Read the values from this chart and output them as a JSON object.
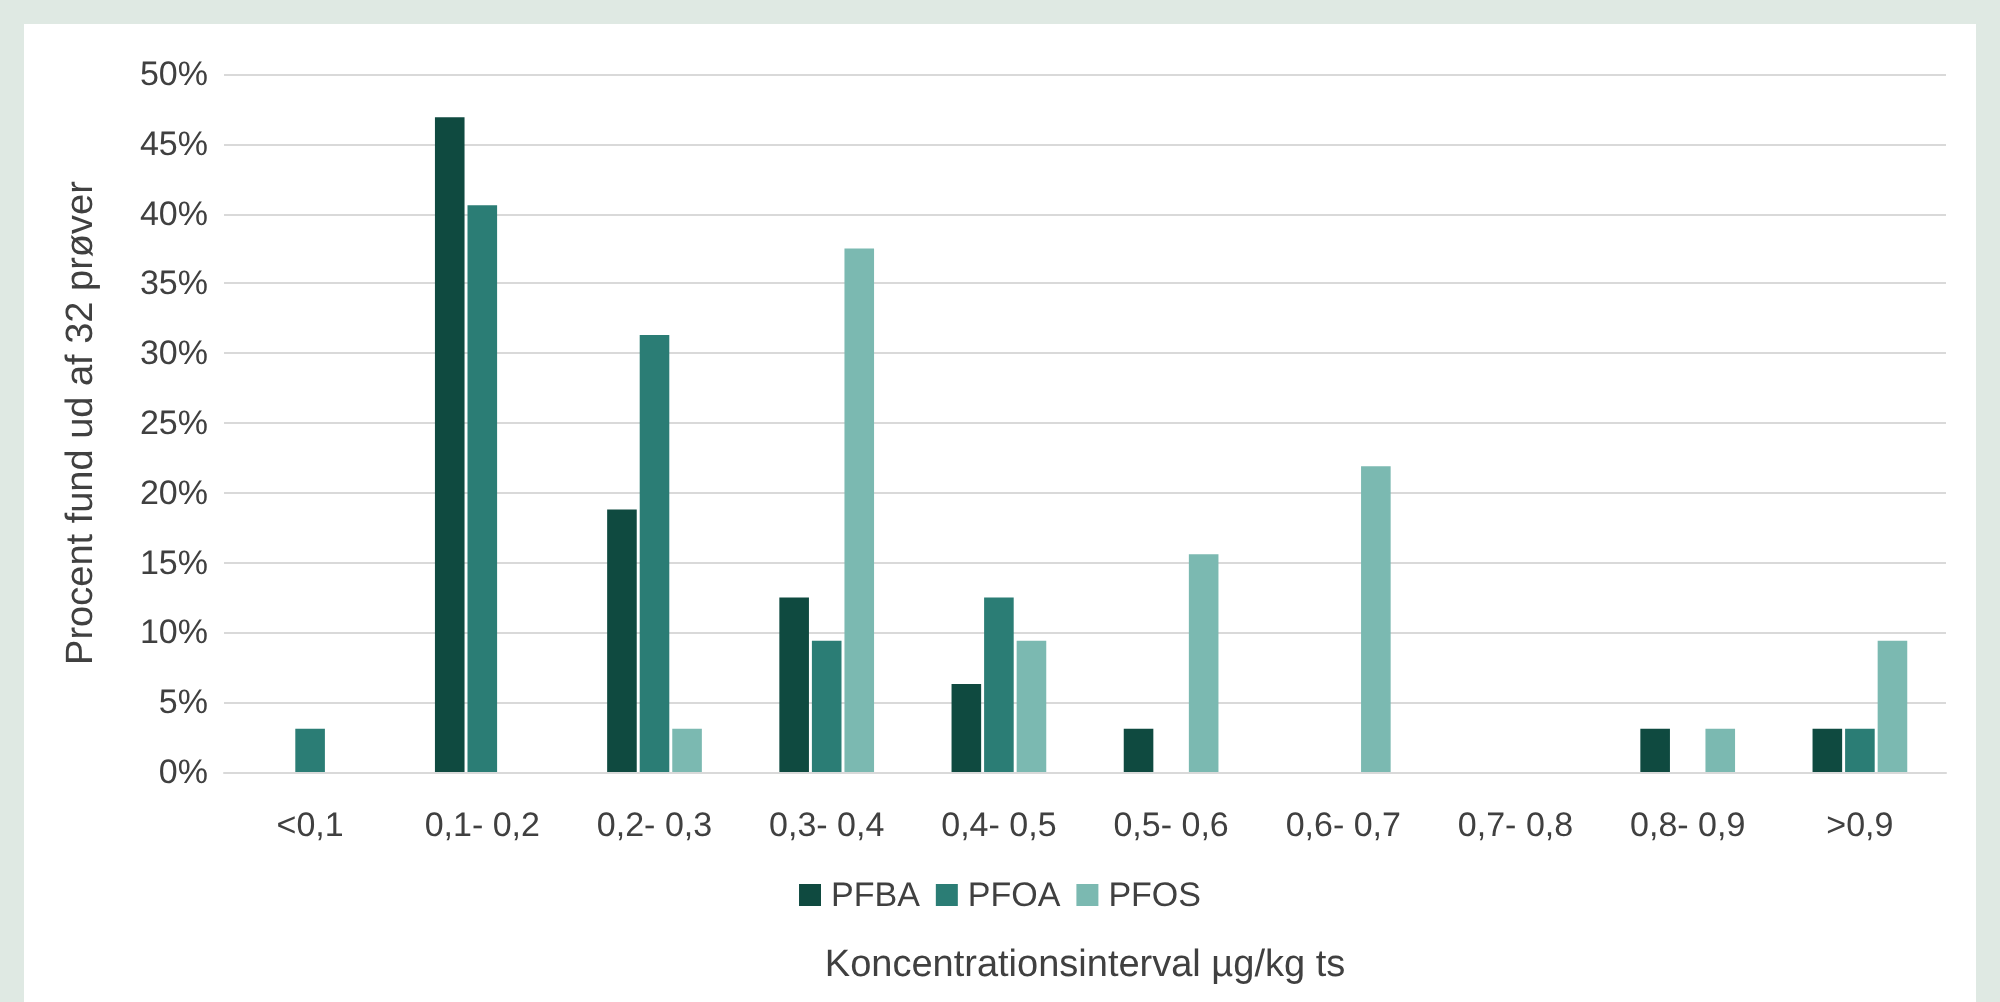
{
  "chart_data": {
    "type": "bar",
    "xlabel": "Koncentrationsinterval µg/kg ts",
    "ylabel": "Procent fund ud af 32 prøver",
    "categories": [
      "<0,1",
      "0,1- 0,2",
      "0,2- 0,3",
      "0,3- 0,4",
      "0,4- 0,5",
      "0,5- 0,6",
      "0,6- 0,7",
      "0,7- 0,8",
      "0,8- 0,9",
      ">0,9"
    ],
    "series": [
      {
        "name": "PFBA",
        "color": "#0f4a40",
        "values": [
          0,
          46.9,
          18.8,
          12.5,
          6.3,
          3.1,
          0,
          0,
          3.1,
          3.1
        ]
      },
      {
        "name": "PFOA",
        "color": "#2b7d75",
        "values": [
          3.1,
          40.6,
          31.3,
          9.4,
          12.5,
          0,
          0,
          0,
          0,
          3.1
        ]
      },
      {
        "name": "PFOS",
        "color": "#7bb9b1",
        "values": [
          0,
          0,
          3.1,
          37.5,
          9.4,
          15.6,
          21.9,
          0,
          3.1,
          9.4
        ]
      }
    ],
    "ylim": [
      0,
      50
    ],
    "yticks": [
      {
        "value": 0,
        "label": "0%"
      },
      {
        "value": 5,
        "label": "5%"
      },
      {
        "value": 10,
        "label": "10%"
      },
      {
        "value": 15,
        "label": "15%"
      },
      {
        "value": 20,
        "label": "20%"
      },
      {
        "value": 25,
        "label": "25%"
      },
      {
        "value": 30,
        "label": "30%"
      },
      {
        "value": 35,
        "label": "35%"
      },
      {
        "value": 40,
        "label": "40%"
      },
      {
        "value": 45,
        "label": "45%"
      },
      {
        "value": 50,
        "label": "50%"
      }
    ],
    "grid": "y",
    "legend": "bottom"
  }
}
